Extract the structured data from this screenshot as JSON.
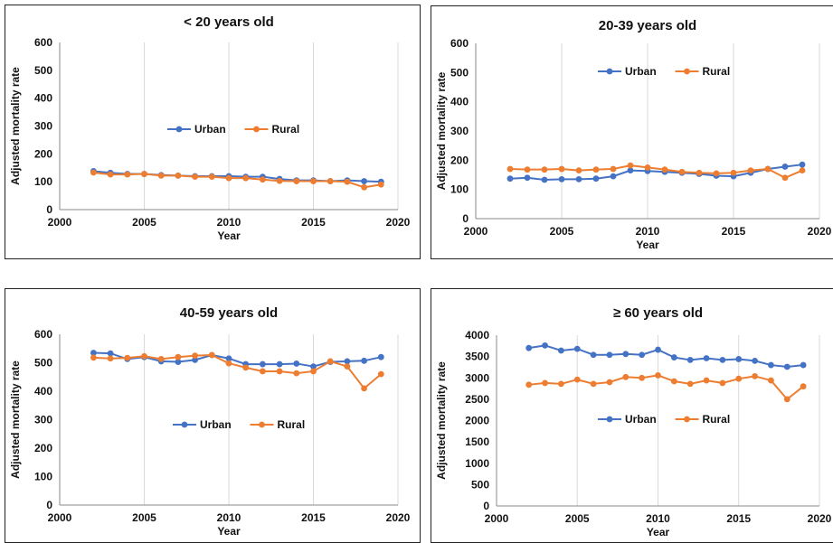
{
  "colors": {
    "urban": "#4472C4",
    "rural": "#ED7D31",
    "grid": "#D9D9D9",
    "frame": "#222222"
  },
  "chart_data": [
    {
      "type": "line",
      "title": "< 20 years old",
      "xlabel": "Year",
      "ylabel": "Adjusted mortality rate",
      "xlim": [
        2000,
        2020
      ],
      "ylim": [
        0,
        600
      ],
      "xticks": [
        "2000",
        "2005",
        "2010",
        "2015",
        "2020"
      ],
      "yticks": [
        "0",
        "100",
        "200",
        "300",
        "400",
        "500",
        "600"
      ],
      "grid": "vertical",
      "legend": "center",
      "x": [
        2002,
        2003,
        2004,
        2005,
        2006,
        2007,
        2008,
        2009,
        2010,
        2011,
        2012,
        2013,
        2014,
        2015,
        2016,
        2017,
        2018,
        2019
      ],
      "series": [
        {
          "name": "Urban",
          "values": [
            138,
            132,
            128,
            128,
            124,
            122,
            120,
            120,
            120,
            118,
            118,
            110,
            105,
            105,
            102,
            105,
            102,
            100
          ]
        },
        {
          "name": "Rural",
          "values": [
            133,
            126,
            126,
            128,
            122,
            122,
            118,
            118,
            113,
            113,
            108,
            103,
            102,
            102,
            102,
            100,
            80,
            90
          ]
        }
      ]
    },
    {
      "type": "line",
      "title": "20-39 years old",
      "xlabel": "Year",
      "ylabel": "Adjusted mortality rate",
      "xlim": [
        2000,
        2020
      ],
      "ylim": [
        0,
        600
      ],
      "xticks": [
        "2000",
        "2005",
        "2010",
        "2015",
        "2020"
      ],
      "yticks": [
        "0",
        "100",
        "200",
        "300",
        "400",
        "500",
        "600"
      ],
      "grid": "vertical",
      "legend": "top-center",
      "x": [
        2002,
        2003,
        2004,
        2005,
        2006,
        2007,
        2008,
        2009,
        2010,
        2011,
        2012,
        2013,
        2014,
        2015,
        2016,
        2017,
        2018,
        2019
      ],
      "series": [
        {
          "name": "Urban",
          "values": [
            137,
            140,
            133,
            135,
            135,
            137,
            145,
            165,
            163,
            160,
            157,
            153,
            147,
            145,
            157,
            170,
            178,
            185
          ]
        },
        {
          "name": "Rural",
          "values": [
            170,
            168,
            168,
            170,
            165,
            168,
            170,
            182,
            175,
            168,
            160,
            157,
            155,
            157,
            165,
            170,
            140,
            165
          ]
        }
      ]
    },
    {
      "type": "line",
      "title": "40-59 years old",
      "xlabel": "Year",
      "ylabel": "Adjusted mortality rate",
      "xlim": [
        2000,
        2020
      ],
      "ylim": [
        0,
        600
      ],
      "xticks": [
        "2000",
        "2005",
        "2010",
        "2015",
        "2020"
      ],
      "yticks": [
        "0",
        "100",
        "200",
        "300",
        "400",
        "500",
        "600"
      ],
      "grid": "vertical",
      "legend": "center",
      "x": [
        2002,
        2003,
        2004,
        2005,
        2006,
        2007,
        2008,
        2009,
        2010,
        2011,
        2012,
        2013,
        2014,
        2015,
        2016,
        2017,
        2018,
        2019
      ],
      "series": [
        {
          "name": "Urban",
          "values": [
            535,
            533,
            513,
            520,
            505,
            503,
            510,
            527,
            515,
            495,
            495,
            495,
            497,
            487,
            503,
            505,
            507,
            520
          ]
        },
        {
          "name": "Rural",
          "values": [
            518,
            515,
            517,
            523,
            513,
            520,
            525,
            527,
            498,
            483,
            470,
            470,
            463,
            470,
            505,
            487,
            410,
            460
          ]
        }
      ]
    },
    {
      "type": "line",
      "title": "≥ 60 years old",
      "xlabel": "Year",
      "ylabel": "Adjusted mortality rate",
      "xlim": [
        2000,
        2020
      ],
      "ylim": [
        0,
        4000
      ],
      "xticks": [
        "2000",
        "2005",
        "2010",
        "2015",
        "2020"
      ],
      "yticks": [
        "0",
        "500",
        "1000",
        "1500",
        "2000",
        "2500",
        "3000",
        "3500",
        "4000"
      ],
      "grid": "vertical",
      "legend": "center",
      "x": [
        2002,
        2003,
        2004,
        2005,
        2006,
        2007,
        2008,
        2009,
        2010,
        2011,
        2012,
        2013,
        2014,
        2015,
        2016,
        2017,
        2018,
        2019
      ],
      "series": [
        {
          "name": "Urban",
          "values": [
            3700,
            3760,
            3640,
            3680,
            3540,
            3540,
            3560,
            3540,
            3660,
            3480,
            3420,
            3460,
            3420,
            3440,
            3400,
            3300,
            3260,
            3300
          ]
        },
        {
          "name": "Rural",
          "values": [
            2840,
            2880,
            2860,
            2960,
            2860,
            2900,
            3020,
            3000,
            3060,
            2920,
            2860,
            2940,
            2880,
            2980,
            3040,
            2940,
            2500,
            2800
          ]
        }
      ]
    }
  ]
}
